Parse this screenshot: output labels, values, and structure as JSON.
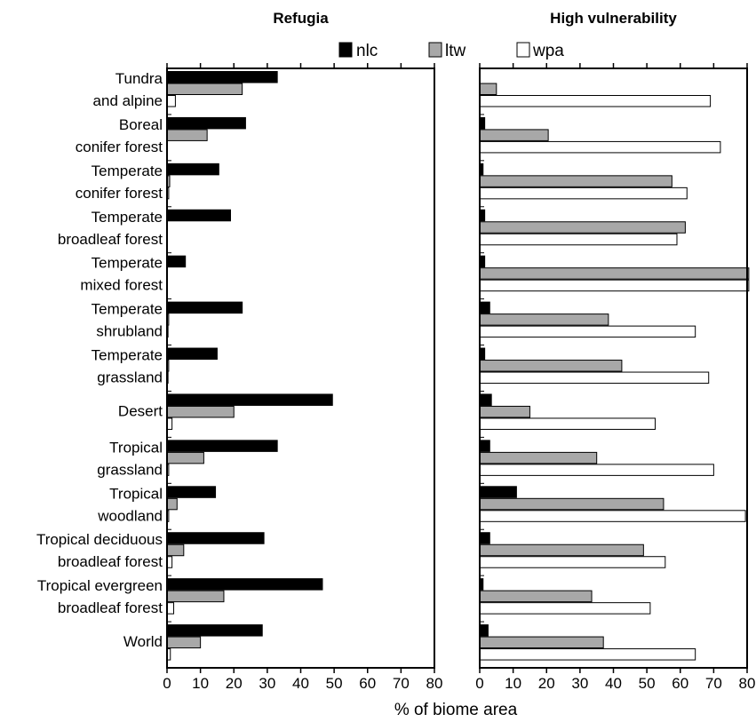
{
  "chart_data": {
    "type": "bar",
    "orientation": "horizontal",
    "xlabel": "% of biome area",
    "xlim": [
      0,
      80
    ],
    "xticks": [
      0,
      10,
      20,
      30,
      40,
      50,
      60,
      70,
      80
    ],
    "categories": [
      [
        "Tundra",
        "and alpine"
      ],
      [
        "Boreal",
        "conifer forest"
      ],
      [
        "Temperate",
        "conifer forest"
      ],
      [
        "Temperate",
        "broadleaf forest"
      ],
      [
        "Temperate",
        "mixed forest"
      ],
      [
        "Temperate",
        "shrubland"
      ],
      [
        "Temperate",
        "grassland"
      ],
      [
        "Desert"
      ],
      [
        "Tropical",
        "grassland"
      ],
      [
        "Tropical",
        "woodland"
      ],
      [
        "Tropical deciduous",
        "broadleaf forest"
      ],
      [
        "Tropical evergreen",
        "broadleaf forest"
      ],
      [
        "World"
      ]
    ],
    "legend": [
      {
        "name": "nlc",
        "color": "#000000"
      },
      {
        "name": "ltw",
        "color": "#a8a8a8"
      },
      {
        "name": "wpa",
        "color": "#ffffff"
      }
    ],
    "panels": [
      {
        "title": "Refugia",
        "series": [
          {
            "name": "nlc",
            "values": [
              33,
              23.5,
              15.5,
              19,
              5.5,
              22.5,
              15,
              49.5,
              33,
              14.5,
              29,
              46.5,
              28.5
            ]
          },
          {
            "name": "ltw",
            "values": [
              22.5,
              12,
              0.8,
              0,
              0,
              0.5,
              0.5,
              20,
              11,
              3,
              5,
              17,
              10
            ]
          },
          {
            "name": "wpa",
            "values": [
              2.5,
              0,
              0.5,
              0,
              0,
              0.3,
              0.3,
              1.5,
              0.5,
              0.5,
              1.5,
              2,
              1
            ]
          }
        ]
      },
      {
        "title": "High vulnerability",
        "series": [
          {
            "name": "nlc",
            "values": [
              0,
              1.5,
              1,
              1.5,
              1.5,
              3,
              1.5,
              3.5,
              3,
              11,
              3,
              1,
              2.5
            ]
          },
          {
            "name": "ltw",
            "values": [
              5,
              20.5,
              57.5,
              61.5,
              80.5,
              38.5,
              42.5,
              15,
              35,
              55,
              49,
              33.5,
              37
            ]
          },
          {
            "name": "wpa",
            "values": [
              69,
              72,
              62,
              59,
              80.5,
              64.5,
              68.5,
              52.5,
              70,
              79.5,
              55.5,
              51,
              64.5
            ]
          }
        ]
      }
    ]
  }
}
